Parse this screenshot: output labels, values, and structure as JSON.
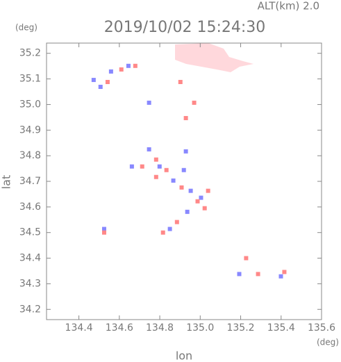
{
  "chart_data": {
    "type": "scatter",
    "title": "2019/10/02 15:24:30",
    "subtitle": "ALT(km) 2.0",
    "xlabel": "lon",
    "ylabel": "lat",
    "x_unit": "(deg)",
    "y_unit": "(deg)",
    "xlim": [
      134.24,
      135.6
    ],
    "ylim": [
      34.16,
      35.24
    ],
    "xticks": [
      134.4,
      134.6,
      134.8,
      {
        "value": 135,
        "label": "135.0"
      },
      135.2,
      135.4,
      135.6
    ],
    "yticks": [
      34.2,
      34.3,
      34.4,
      34.5,
      34.6,
      34.7,
      34.8,
      34.9,
      {
        "value": 35,
        "label": "35.0"
      },
      35.1,
      35.2
    ],
    "series": [
      {
        "color": "#8888ff",
        "x": [
          134.473,
          134.559,
          134.645,
          134.507,
          134.662,
          134.747,
          134.799,
          134.867,
          134.919,
          134.953,
          135.004,
          134.85,
          135.193,
          135.399,
          134.525,
          134.936,
          134.747,
          134.929
        ],
        "y": [
          35.096,
          35.129,
          35.151,
          35.069,
          34.758,
          34.825,
          34.758,
          34.703,
          34.744,
          34.663,
          34.636,
          34.514,
          34.338,
          34.329,
          34.514,
          34.581,
          35.007,
          34.817
        ]
      },
      {
        "color": "#ff8888",
        "x": [
          134.61,
          134.542,
          134.679,
          134.713,
          134.782,
          134.833,
          134.908,
          134.987,
          135.039,
          134.885,
          134.816,
          134.525,
          134.902,
          134.929,
          134.97,
          135.227,
          135.286,
          135.416,
          134.782,
          135.022
        ],
        "y": [
          35.137,
          35.088,
          35.151,
          34.758,
          34.717,
          34.744,
          34.676,
          34.622,
          34.663,
          34.541,
          34.5,
          34.5,
          35.088,
          34.947,
          35.007,
          34.4,
          34.338,
          34.346,
          34.785,
          34.595
        ]
      }
    ]
  }
}
